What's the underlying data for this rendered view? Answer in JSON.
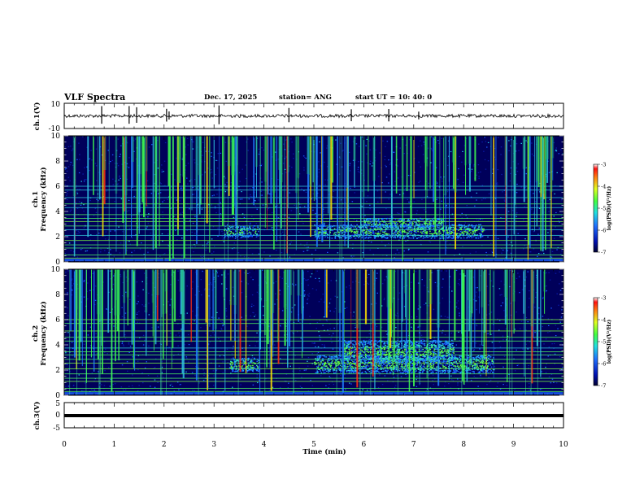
{
  "header": {
    "title": "VLF Spectra",
    "date": "Dec. 17, 2025",
    "station": "station= ANG",
    "start": "start UT =  10: 40: 0"
  },
  "chart_data": [
    {
      "type": "line",
      "id": "ch1-waveform",
      "ylabel": "ch.1(V)",
      "ylim": [
        -10,
        10
      ],
      "yticks": [
        "10",
        "-10"
      ],
      "xlim": [
        0,
        10
      ],
      "description_values": {
        "baseline_level": 0
      }
    },
    {
      "type": "heatmap",
      "id": "ch1-spectrogram",
      "ylabel": "ch.1\nFrequency (kHz)",
      "ylim": [
        0,
        10
      ],
      "yticks": [
        "0",
        "2",
        "4",
        "6",
        "8",
        "10"
      ],
      "xlim": [
        0,
        10
      ],
      "colorbar": {
        "label": "log(PSD)(V²/Hz)",
        "range": [
          -7,
          -3
        ],
        "ticks": [
          "-3",
          "-4",
          "-5",
          "-6",
          "-7"
        ]
      }
    },
    {
      "type": "heatmap",
      "id": "ch2-spectrogram",
      "ylabel": "ch.2\nFrequency (kHz)",
      "ylim": [
        0,
        10
      ],
      "yticks": [
        "0",
        "2",
        "4",
        "6",
        "8",
        "10"
      ],
      "xlim": [
        0,
        10
      ],
      "colorbar": {
        "label": "log(PSD)(V²/Hz)",
        "range": [
          -7,
          -3
        ],
        "ticks": [
          "-3",
          "-4",
          "-5",
          "-6",
          "-7"
        ]
      }
    },
    {
      "type": "line",
      "id": "ch3-waveform",
      "ylabel": "ch.3(V)",
      "ylim": [
        -5,
        5
      ],
      "yticks": [
        "5",
        "0",
        "-5"
      ],
      "xlim": [
        0,
        10
      ],
      "description_values": {
        "constant_level": -0.5
      }
    }
  ],
  "xaxis": {
    "label": "Time (min)",
    "ticks": [
      "0",
      "1",
      "2",
      "3",
      "4",
      "5",
      "6",
      "7",
      "8",
      "9",
      "10"
    ]
  },
  "labels": {
    "ch1_v": "ch.1(V)",
    "ch1_f1": "ch.1",
    "ch1_f2": "Frequency (kHz)",
    "ch2_f1": "ch.2",
    "ch2_f2": "Frequency (kHz)",
    "ch3_v": "ch.3(V)",
    "cb_label": "log(PSD)(V²/Hz)"
  },
  "colors": {
    "background_dark": "#00005a",
    "low": "#0a14a0",
    "mid": "#28a0ff",
    "cyan": "#30e0d0",
    "green": "#60ff40",
    "yellow": "#ffe000",
    "red": "#ff2010"
  }
}
